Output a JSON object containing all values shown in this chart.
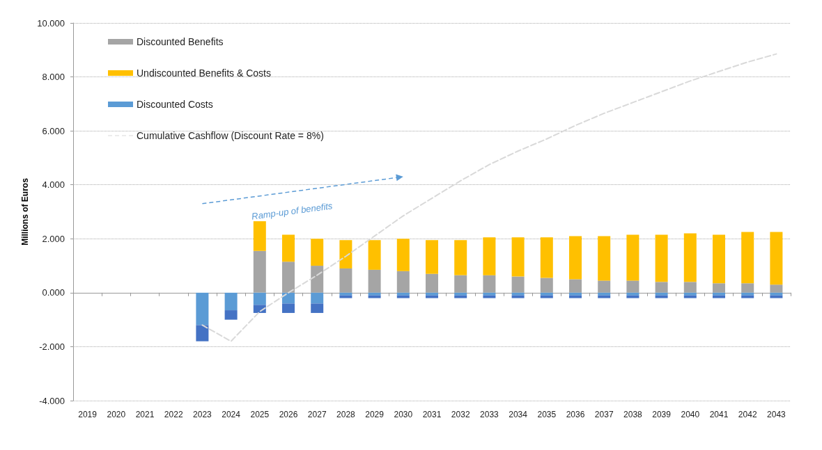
{
  "chart_data": {
    "type": "bar",
    "stacked": true,
    "ylabel": "Millions of Euros",
    "categories": [
      "2019",
      "2020",
      "2021",
      "2022",
      "2023",
      "2024",
      "2025",
      "2026",
      "2027",
      "2028",
      "2029",
      "2030",
      "2031",
      "2032",
      "2033",
      "2034",
      "2035",
      "2036",
      "2037",
      "2038",
      "2039",
      "2040",
      "2041",
      "2042",
      "2043"
    ],
    "series": [
      {
        "name": "Discounted Benefits",
        "color": "#a5a5a5",
        "values": [
          null,
          null,
          null,
          null,
          null,
          null,
          1.55,
          1.15,
          1.0,
          0.9,
          0.85,
          0.8,
          0.7,
          0.65,
          0.65,
          0.6,
          0.55,
          0.5,
          0.45,
          0.45,
          0.4,
          0.4,
          0.35,
          0.35,
          0.3
        ]
      },
      {
        "name": "Undiscounted Benefits & Costs",
        "color": "#ffc000",
        "values": [
          null,
          null,
          null,
          null,
          null,
          null,
          1.1,
          1.0,
          1.0,
          1.05,
          1.1,
          1.2,
          1.25,
          1.3,
          1.4,
          1.45,
          1.5,
          1.6,
          1.65,
          1.7,
          1.75,
          1.8,
          1.8,
          1.9,
          1.95
        ]
      },
      {
        "name": "Discounted Costs",
        "color": "#5b9bd5",
        "values": [
          null,
          null,
          null,
          null,
          -1.2,
          -0.65,
          -0.45,
          -0.4,
          -0.4,
          -0.1,
          -0.1,
          -0.1,
          -0.1,
          -0.1,
          -0.1,
          -0.1,
          -0.1,
          -0.1,
          -0.1,
          -0.1,
          -0.1,
          -0.1,
          -0.1,
          -0.1,
          -0.1
        ]
      },
      {
        "color": "#4472c4",
        "values": [
          null,
          null,
          null,
          null,
          -0.6,
          -0.35,
          -0.3,
          -0.35,
          -0.35,
          -0.1,
          -0.1,
          -0.1,
          -0.1,
          -0.1,
          -0.1,
          -0.1,
          -0.1,
          -0.1,
          -0.1,
          -0.1,
          -0.1,
          -0.1,
          -0.1,
          -0.1,
          -0.1
        ]
      },
      {
        "type": "line",
        "name": "Cumulative Cashflow (Discount Rate = 8%)",
        "color": "#d9d9d9",
        "line_style": "dashed",
        "marker": "none",
        "values": [
          null,
          null,
          null,
          null,
          -1.2,
          -1.8,
          -0.7,
          0,
          0.65,
          1.35,
          2.1,
          2.85,
          3.5,
          4.15,
          4.75,
          5.25,
          5.7,
          6.2,
          6.65,
          7.05,
          7.45,
          7.85,
          8.2,
          8.55,
          8.85
        ]
      }
    ],
    "ylim": [
      -4,
      10
    ],
    "yticks": [
      {
        "value": -4,
        "label": "-4.000"
      },
      {
        "value": -2,
        "label": "-2.000"
      },
      {
        "value": 0,
        "label": "0.000"
      },
      {
        "value": 2,
        "label": "2.000"
      },
      {
        "value": 4,
        "label": "4.000"
      },
      {
        "value": 6,
        "label": "6.000"
      },
      {
        "value": 8,
        "label": "8.000"
      },
      {
        "value": 10,
        "label": "10.000"
      }
    ],
    "grid": "y",
    "legend": "top left",
    "annotations": [
      "Ramp-up of benefits"
    ]
  }
}
